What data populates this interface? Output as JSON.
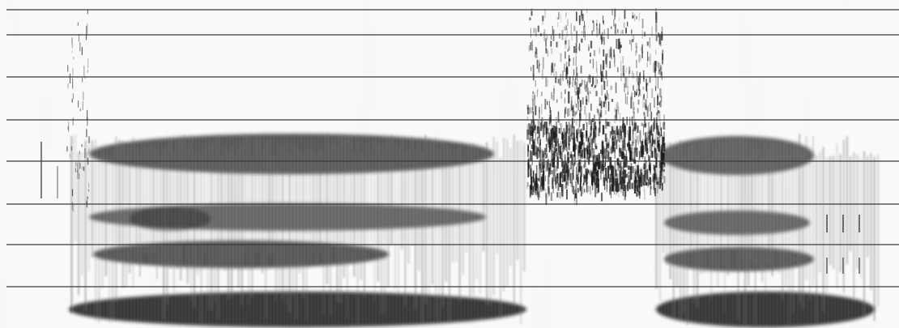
{
  "image": {
    "kind": "sound-spectrogram",
    "printed_text": "",
    "background_color": "#fbfbfb",
    "ink_color": "#1a1a1a",
    "rule_color": "#3a3a3a",
    "horizontal_rules_count": 8,
    "segments": [
      {
        "label": "voiced-segment-left",
        "formant_bands": 4
      },
      {
        "label": "noise-burst-center",
        "formant_bands": 0
      },
      {
        "label": "voiced-segment-right",
        "formant_bands": 4
      }
    ]
  }
}
